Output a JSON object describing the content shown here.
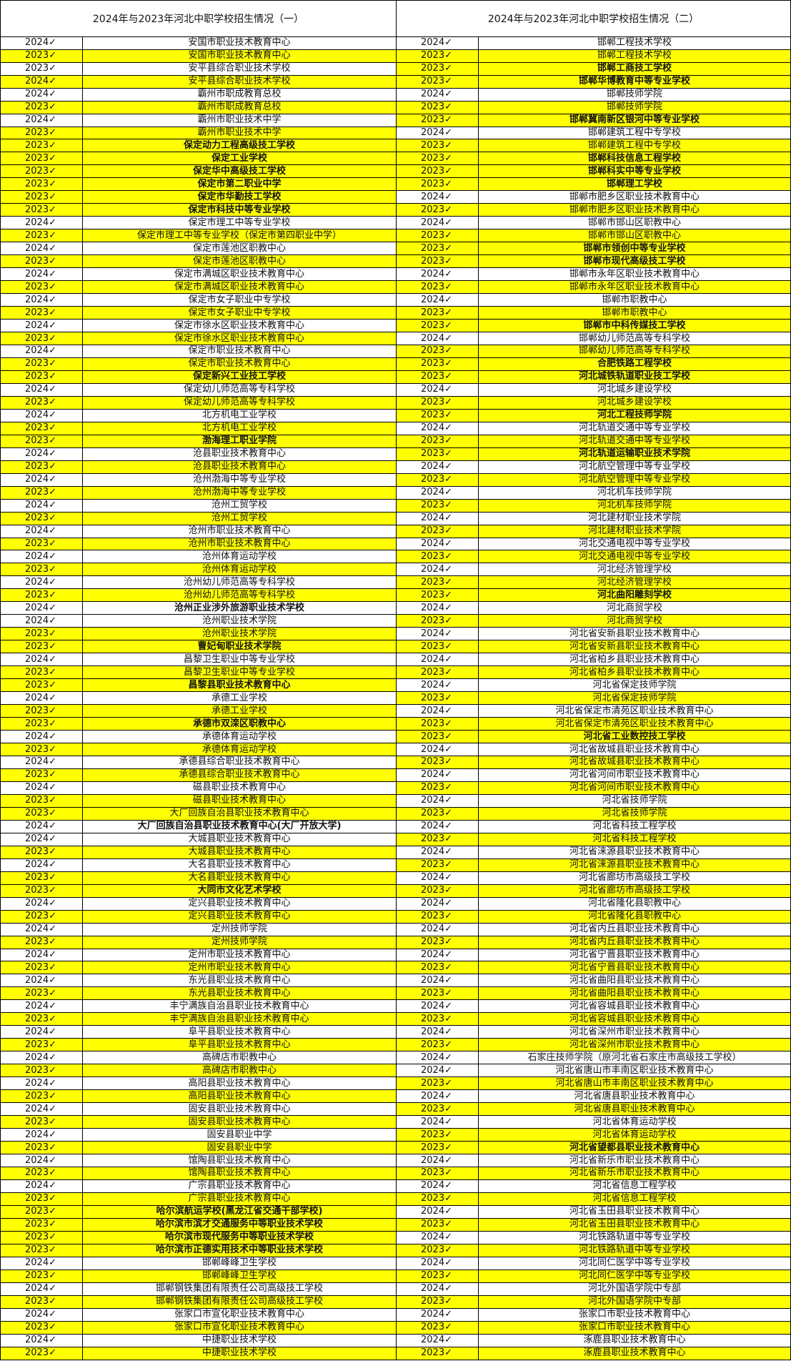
{
  "headers": [
    "2024年与2023年河北中职学校招生情况（一）",
    "2024年与2023年河北中职学校招生情况（二）"
  ],
  "colors": {
    "highlight": "#ffff00",
    "red_text": "#ff0000",
    "border": "#000000"
  },
  "rows": [
    {
      "ly": "2024✓",
      "ln": "安国市职业技术教育中心",
      "lh": 0,
      "lr": 0,
      "ry": "2024✓",
      "rn": "邯郸工程技术学校",
      "rh": 0,
      "rr": 0
    },
    {
      "ly": "2023✓",
      "ln": "安国市职业技术教育中心",
      "lh": 1,
      "lr": 0,
      "ry": "2023✓",
      "rn": "邯郸工程技术学校",
      "rh": 1,
      "rr": 0
    },
    {
      "ly": "2023✓",
      "ln": "安平县综合职业技术学校",
      "lh": 0,
      "lr": 0,
      "ry": "2023✓",
      "rn": "邯郸工商技工学校",
      "rh": 1,
      "rr": 1
    },
    {
      "ly": "2024✓",
      "ln": "安平县综合职业技术学校",
      "lh": 1,
      "lr": 0,
      "ry": "2023✓",
      "rn": "邯郸华博教育中等专业学校",
      "rh": 1,
      "rr": 1
    },
    {
      "ly": "2024✓",
      "ln": "霸州市职成教育总校",
      "lh": 0,
      "lr": 0,
      "ry": "2024✓",
      "rn": "邯郸技师学院",
      "rh": 0,
      "rr": 0
    },
    {
      "ly": "2023✓",
      "ln": "霸州市职成教育总校",
      "lh": 1,
      "lr": 0,
      "ry": "2023✓",
      "rn": "邯郸技师学院",
      "rh": 1,
      "rr": 0
    },
    {
      "ly": "2024✓",
      "ln": "霸州市职业技术中学",
      "lh": 0,
      "lr": 0,
      "ry": "2023✓",
      "rn": "邯郸冀南新区银河中等专业学校",
      "rh": 1,
      "rr": 1
    },
    {
      "ly": "2023✓",
      "ln": "霸州市职业技术中学",
      "lh": 1,
      "lr": 0,
      "ry": "2024✓",
      "rn": "邯郸建筑工程中专学校",
      "rh": 0,
      "rr": 0
    },
    {
      "ly": "2023✓",
      "ln": "保定动力工程高级技工学校",
      "lh": 1,
      "lr": 1,
      "ry": "2023✓",
      "rn": "邯郸建筑工程中专学校",
      "rh": 1,
      "rr": 0
    },
    {
      "ly": "2023✓",
      "ln": "保定工业学校",
      "lh": 1,
      "lr": 1,
      "ry": "2023✓",
      "rn": "邯郸科技信息工程学校",
      "rh": 1,
      "rr": 1
    },
    {
      "ly": "2023✓",
      "ln": "保定华中高级技工学校",
      "lh": 1,
      "lr": 1,
      "ry": "2023✓",
      "rn": "邯郸科实中等专业学校",
      "rh": 1,
      "rr": 1
    },
    {
      "ly": "2023✓",
      "ln": "保定市第二职业中学",
      "lh": 1,
      "lr": 1,
      "ry": "2023✓",
      "rn": "邯郸理工学校",
      "rh": 1,
      "rr": 1
    },
    {
      "ly": "2023✓",
      "ln": "保定市华勤技工学校",
      "lh": 1,
      "lr": 1,
      "ry": "2024✓",
      "rn": "邯郸市肥乡区职业技术教育中心",
      "rh": 0,
      "rr": 0
    },
    {
      "ly": "2023✓",
      "ln": "保定市科技中等专业学校",
      "lh": 1,
      "lr": 1,
      "ry": "2023✓",
      "rn": "邯郸市肥乡区职业技术教育中心",
      "rh": 1,
      "rr": 0
    },
    {
      "ly": "2024✓",
      "ln": "保定市理工中等专业学校",
      "lh": 0,
      "lr": 0,
      "ry": "2024✓",
      "rn": "邯郸市邯山区职教中心",
      "rh": 0,
      "rr": 0
    },
    {
      "ly": "2023✓",
      "ln": "保定市理工中等专业学校（保定市第四职业中学）",
      "lh": 1,
      "lr": 0,
      "ry": "2023✓",
      "rn": "邯郸市邯山区职教中心",
      "rh": 1,
      "rr": 0
    },
    {
      "ly": "2024✓",
      "ln": "保定市莲池区职教中心",
      "lh": 0,
      "lr": 0,
      "ry": "2023✓",
      "rn": "邯郸市领创中等专业学校",
      "rh": 1,
      "rr": 1
    },
    {
      "ly": "2023✓",
      "ln": "保定市莲池区职教中心",
      "lh": 1,
      "lr": 0,
      "ry": "2023✓",
      "rn": "邯郸市现代高级技工学校",
      "rh": 1,
      "rr": 1
    },
    {
      "ly": "2024✓",
      "ln": "保定市满城区职业技术教育中心",
      "lh": 0,
      "lr": 0,
      "ry": "2024✓",
      "rn": "邯郸市永年区职业技术教育中心",
      "rh": 0,
      "rr": 0
    },
    {
      "ly": "2023✓",
      "ln": "保定市满城区职业技术教育中心",
      "lh": 1,
      "lr": 0,
      "ry": "2023✓",
      "rn": "邯郸市永年区职业技术教育中心",
      "rh": 1,
      "rr": 0
    },
    {
      "ly": "2024✓",
      "ln": "保定市女子职业中专学校",
      "lh": 0,
      "lr": 0,
      "ry": "2024✓",
      "rn": "邯郸市职教中心",
      "rh": 0,
      "rr": 0
    },
    {
      "ly": "2023✓",
      "ln": "保定市女子职业中专学校",
      "lh": 1,
      "lr": 0,
      "ry": "2023✓",
      "rn": "邯郸市职教中心",
      "rh": 1,
      "rr": 0
    },
    {
      "ly": "2024✓",
      "ln": "保定市徐水区职业技术教育中心",
      "lh": 0,
      "lr": 0,
      "ry": "2023✓",
      "rn": "邯郸市中科传媒技工学校",
      "rh": 1,
      "rr": 1
    },
    {
      "ly": "2023✓",
      "ln": "保定市徐水区职业技术教育中心",
      "lh": 1,
      "lr": 0,
      "ry": "2024✓",
      "rn": "邯郸幼儿师范高等专科学校",
      "rh": 0,
      "rr": 0
    },
    {
      "ly": "2024✓",
      "ln": "保定市职业技术教育中心",
      "lh": 0,
      "lr": 0,
      "ry": "2023✓",
      "rn": "邯郸幼儿师范高等专科学校",
      "rh": 1,
      "rr": 0
    },
    {
      "ly": "2023✓",
      "ln": "保定市职业技术教育中心",
      "lh": 1,
      "lr": 0,
      "ry": "2023✓",
      "rn": "合肥铁路工程学校",
      "rh": 1,
      "rr": 1
    },
    {
      "ly": "2023✓",
      "ln": "保定新兴工业技工学校",
      "lh": 1,
      "lr": 1,
      "ry": "2023✓",
      "rn": "河北城铁轨道职业技工学校",
      "rh": 1,
      "rr": 1
    },
    {
      "ly": "2024✓",
      "ln": "保定幼儿师范高等专科学校",
      "lh": 0,
      "lr": 0,
      "ry": "2024✓",
      "rn": "河北城乡建设学校",
      "rh": 0,
      "rr": 0
    },
    {
      "ly": "2023✓",
      "ln": "保定幼儿师范高等专科学校",
      "lh": 1,
      "lr": 0,
      "ry": "2023✓",
      "rn": "河北城乡建设学校",
      "rh": 1,
      "rr": 0
    },
    {
      "ly": "2024✓",
      "ln": "北方机电工业学校",
      "lh": 0,
      "lr": 0,
      "ry": "2023✓",
      "rn": "河北工程技师学院",
      "rh": 1,
      "rr": 1
    },
    {
      "ly": "2023✓",
      "ln": "北方机电工业学校",
      "lh": 1,
      "lr": 0,
      "ry": "2024✓",
      "rn": "河北轨道交通中等专业学校",
      "rh": 0,
      "rr": 0
    },
    {
      "ly": "2023✓",
      "ln": "渤海理工职业学院",
      "lh": 1,
      "lr": 1,
      "ry": "2023✓",
      "rn": "河北轨道交通中等专业学校",
      "rh": 1,
      "rr": 0
    },
    {
      "ly": "2024✓",
      "ln": "沧县职业技术教育中心",
      "lh": 0,
      "lr": 0,
      "ry": "2023✓",
      "rn": "河北轨道运输职业技术学院",
      "rh": 1,
      "rr": 1
    },
    {
      "ly": "2023✓",
      "ln": "沧县职业技术教育中心",
      "lh": 1,
      "lr": 0,
      "ry": "2024✓",
      "rn": "河北航空管理中等专业学校",
      "rh": 0,
      "rr": 0
    },
    {
      "ly": "2024✓",
      "ln": "沧州渤海中等专业学校",
      "lh": 0,
      "lr": 0,
      "ry": "2023✓",
      "rn": "河北航空管理中等专业学校",
      "rh": 1,
      "rr": 0
    },
    {
      "ly": "2023✓",
      "ln": "沧州渤海中等专业学校",
      "lh": 1,
      "lr": 0,
      "ry": "2024✓",
      "rn": "河北机车技师学院",
      "rh": 0,
      "rr": 0
    },
    {
      "ly": "2024✓",
      "ln": "沧州工贸学校",
      "lh": 0,
      "lr": 0,
      "ry": "2023✓",
      "rn": "河北机车技师学院",
      "rh": 1,
      "rr": 0
    },
    {
      "ly": "2023✓",
      "ln": "沧州工贸学校",
      "lh": 1,
      "lr": 0,
      "ry": "2024✓",
      "rn": "河北建材职业技术学院",
      "rh": 0,
      "rr": 0
    },
    {
      "ly": "2024✓",
      "ln": "沧州市职业技术教育中心",
      "lh": 0,
      "lr": 0,
      "ry": "2023✓",
      "rn": "河北建材职业技术学院",
      "rh": 1,
      "rr": 0
    },
    {
      "ly": "2023✓",
      "ln": "沧州市职业技术教育中心",
      "lh": 1,
      "lr": 0,
      "ry": "2024✓",
      "rn": "河北交通电视中等专业学校",
      "rh": 0,
      "rr": 0
    },
    {
      "ly": "2024✓",
      "ln": "沧州体育运动学校",
      "lh": 0,
      "lr": 0,
      "ry": "2023✓",
      "rn": "河北交通电视中等专业学校",
      "rh": 1,
      "rr": 0
    },
    {
      "ly": "2023✓",
      "ln": "沧州体育运动学校",
      "lh": 1,
      "lr": 0,
      "ry": "2024✓",
      "rn": "河北经济管理学校",
      "rh": 0,
      "rr": 0
    },
    {
      "ly": "2024✓",
      "ln": "沧州幼儿师范高等专科学校",
      "lh": 0,
      "lr": 0,
      "ry": "2023✓",
      "rn": "河北经济管理学校",
      "rh": 1,
      "rr": 0
    },
    {
      "ly": "2023✓",
      "ln": "沧州幼儿师范高等专科学校",
      "lh": 1,
      "lr": 0,
      "ry": "2023✓",
      "rn": "河北曲阳雕刻学校",
      "rh": 1,
      "rr": 1
    },
    {
      "ly": "2024✓",
      "ln": "沧州正业涉外旅游职业技术学校",
      "lh": 0,
      "lr": 1,
      "ry": "2024✓",
      "rn": "河北商贸学校",
      "rh": 0,
      "rr": 0
    },
    {
      "ly": "2024✓",
      "ln": "沧州职业技术学院",
      "lh": 0,
      "lr": 0,
      "ry": "2023✓",
      "rn": "河北商贸学校",
      "rh": 1,
      "rr": 0
    },
    {
      "ly": "2023✓",
      "ln": "沧州职业技术学院",
      "lh": 1,
      "lr": 0,
      "ry": "2024✓",
      "rn": "河北省安新县职业技术教育中心",
      "rh": 0,
      "rr": 0
    },
    {
      "ly": "2023✓",
      "ln": "曹妃甸职业技术学院",
      "lh": 1,
      "lr": 1,
      "ry": "2023✓",
      "rn": "河北省安新县职业技术教育中心",
      "rh": 1,
      "rr": 0
    },
    {
      "ly": "2024✓",
      "ln": "昌黎卫生职业中等专业学校",
      "lh": 0,
      "lr": 0,
      "ry": "2024✓",
      "rn": "河北省柏乡县职业技术教育中心",
      "rh": 0,
      "rr": 0
    },
    {
      "ly": "2023✓",
      "ln": "昌黎卫生职业中等专业学校",
      "lh": 1,
      "lr": 0,
      "ry": "2023✓",
      "rn": "河北省柏乡县职业技术教育中心",
      "rh": 1,
      "rr": 0
    },
    {
      "ly": "2023✓",
      "ln": "昌黎县职业技术教育中心",
      "lh": 1,
      "lr": 1,
      "ry": "2024✓",
      "rn": "河北省保定技师学院",
      "rh": 0,
      "rr": 0
    },
    {
      "ly": "2024✓",
      "ln": "承德工业学校",
      "lh": 0,
      "lr": 0,
      "ry": "2023✓",
      "rn": "河北省保定技师学院",
      "rh": 1,
      "rr": 0
    },
    {
      "ly": "2023✓",
      "ln": "承德工业学校",
      "lh": 1,
      "lr": 0,
      "ry": "2024✓",
      "rn": "河北省保定市清苑区职业技术教育中心",
      "rh": 0,
      "rr": 0
    },
    {
      "ly": "2023✓",
      "ln": "承德市双滦区职教中心",
      "lh": 1,
      "lr": 1,
      "ry": "2023✓",
      "rn": "河北省保定市清苑区职业技术教育中心",
      "rh": 1,
      "rr": 0
    },
    {
      "ly": "2024✓",
      "ln": "承德体育运动学校",
      "lh": 0,
      "lr": 0,
      "ry": "2023✓",
      "rn": "河北省工业数控技工学校",
      "rh": 1,
      "rr": 1
    },
    {
      "ly": "2023✓",
      "ln": "承德体育运动学校",
      "lh": 1,
      "lr": 0,
      "ry": "2024✓",
      "rn": "河北省故城县职业技术教育中心",
      "rh": 0,
      "rr": 0
    },
    {
      "ly": "2024✓",
      "ln": "承德县综合职业技术教育中心",
      "lh": 0,
      "lr": 0,
      "ry": "2023✓",
      "rn": "河北省故城县职业技术教育中心",
      "rh": 1,
      "rr": 0
    },
    {
      "ly": "2023✓",
      "ln": "承德县综合职业技术教育中心",
      "lh": 1,
      "lr": 0,
      "ry": "2024✓",
      "rn": "河北省河间市职业技术教育中心",
      "rh": 0,
      "rr": 0
    },
    {
      "ly": "2024✓",
      "ln": "磁县职业技术教育中心",
      "lh": 0,
      "lr": 0,
      "ry": "2023✓",
      "rn": "河北省河间市职业技术教育中心",
      "rh": 1,
      "rr": 0
    },
    {
      "ly": "2023✓",
      "ln": "磁县职业技术教育中心",
      "lh": 1,
      "lr": 0,
      "ry": "2024✓",
      "rn": "河北省技师学院",
      "rh": 0,
      "rr": 0
    },
    {
      "ly": "2023✓",
      "ln": "大厂回族自治县职业技术教育中心",
      "lh": 1,
      "lr": 0,
      "ry": "2023✓",
      "rn": "河北省技师学院",
      "rh": 1,
      "rr": 0
    },
    {
      "ly": "2024✓",
      "ln": "大厂回族自治县职业技术教育中心(大厂开放大学)",
      "lh": 0,
      "lr": 1,
      "ry": "2024✓",
      "rn": "河北省科技工程学校",
      "rh": 0,
      "rr": 0
    },
    {
      "ly": "2024✓",
      "ln": "大城县职业技术教育中心",
      "lh": 0,
      "lr": 0,
      "ry": "2023✓",
      "rn": "河北省科技工程学校",
      "rh": 1,
      "rr": 0
    },
    {
      "ly": "2023✓",
      "ln": "大城县职业技术教育中心",
      "lh": 1,
      "lr": 0,
      "ry": "2024✓",
      "rn": "河北省涞源县职业技术教育中心",
      "rh": 0,
      "rr": 0
    },
    {
      "ly": "2024✓",
      "ln": "大名县职业技术教育中心",
      "lh": 0,
      "lr": 0,
      "ry": "2023✓",
      "rn": "河北省涞源县职业技术教育中心",
      "rh": 1,
      "rr": 0
    },
    {
      "ly": "2023✓",
      "ln": "大名县职业技术教育中心",
      "lh": 1,
      "lr": 0,
      "ry": "2024✓",
      "rn": "河北省廊坊市高级技工学校",
      "rh": 0,
      "rr": 0
    },
    {
      "ly": "2023✓",
      "ln": "大同市文化艺术学校",
      "lh": 1,
      "lr": 1,
      "ry": "2023✓",
      "rn": "河北省廊坊市高级技工学校",
      "rh": 1,
      "rr": 0
    },
    {
      "ly": "2024✓",
      "ln": "定兴县职业技术教育中心",
      "lh": 0,
      "lr": 0,
      "ry": "2024✓",
      "rn": "河北省隆化县职教中心",
      "rh": 0,
      "rr": 0
    },
    {
      "ly": "2023✓",
      "ln": "定兴县职业技术教育中心",
      "lh": 1,
      "lr": 0,
      "ry": "2023✓",
      "rn": "河北省隆化县职教中心",
      "rh": 1,
      "rr": 0
    },
    {
      "ly": "2024✓",
      "ln": "定州技师学院",
      "lh": 0,
      "lr": 0,
      "ry": "2024✓",
      "rn": "河北省内丘县职业技术教育中心",
      "rh": 0,
      "rr": 0
    },
    {
      "ly": "2023✓",
      "ln": "定州技师学院",
      "lh": 1,
      "lr": 0,
      "ry": "2023✓",
      "rn": "河北省内丘县职业技术教育中心",
      "rh": 1,
      "rr": 0
    },
    {
      "ly": "2024✓",
      "ln": "定州市职业技术教育中心",
      "lh": 0,
      "lr": 0,
      "ry": "2024✓",
      "rn": "河北省宁晋县职业技术教育中心",
      "rh": 0,
      "rr": 0
    },
    {
      "ly": "2023✓",
      "ln": "定州市职业技术教育中心",
      "lh": 1,
      "lr": 0,
      "ry": "2023✓",
      "rn": "河北省宁晋县职业技术教育中心",
      "rh": 1,
      "rr": 0
    },
    {
      "ly": "2024✓",
      "ln": "东光县职业技术教育中心",
      "lh": 0,
      "lr": 0,
      "ry": "2024✓",
      "rn": "河北省曲阳县职业技术教育中心",
      "rh": 0,
      "rr": 0
    },
    {
      "ly": "2023✓",
      "ln": "东光县职业技术教育中心",
      "lh": 1,
      "lr": 0,
      "ry": "2023✓",
      "rn": "河北省曲阳县职业技术教育中心",
      "rh": 1,
      "rr": 0
    },
    {
      "ly": "2024✓",
      "ln": "丰宁满族自治县职业技术教育中心",
      "lh": 0,
      "lr": 0,
      "ry": "2024✓",
      "rn": "河北省容城县职业技术教育中心",
      "rh": 0,
      "rr": 0
    },
    {
      "ly": "2023✓",
      "ln": "丰宁满族自治县职业技术教育中心",
      "lh": 1,
      "lr": 0,
      "ry": "2023✓",
      "rn": "河北省容城县职业技术教育中心",
      "rh": 1,
      "rr": 0
    },
    {
      "ly": "2024✓",
      "ln": "阜平县职业技术教育中心",
      "lh": 0,
      "lr": 0,
      "ry": "2024✓",
      "rn": "河北省深州市职业技术教育中心",
      "rh": 0,
      "rr": 0
    },
    {
      "ly": "2023✓",
      "ln": "阜平县职业技术教育中心",
      "lh": 1,
      "lr": 0,
      "ry": "2023✓",
      "rn": "河北省深州市职业技术教育中心",
      "rh": 1,
      "rr": 0
    },
    {
      "ly": "2024✓",
      "ln": "高碑店市职教中心",
      "lh": 0,
      "lr": 0,
      "ry": "2024✓",
      "rn": "石家庄技师学院（原河北省石家庄市高级技工学校）",
      "rh": 0,
      "rr": 0
    },
    {
      "ly": "2023✓",
      "ln": "高碑店市职教中心",
      "lh": 1,
      "lr": 0,
      "ry": "2024✓",
      "rn": "河北省唐山市丰南区职业技术教育中心",
      "rh": 0,
      "rr": 0
    },
    {
      "ly": "2024✓",
      "ln": "高阳县职业技术教育中心",
      "lh": 0,
      "lr": 0,
      "ry": "2023✓",
      "rn": "河北省唐山市丰南区职业技术教育中心",
      "rh": 1,
      "rr": 0
    },
    {
      "ly": "2023✓",
      "ln": "高阳县职业技术教育中心",
      "lh": 1,
      "lr": 0,
      "ry": "2024✓",
      "rn": "河北省唐县职业技术教育中心",
      "rh": 0,
      "rr": 0
    },
    {
      "ly": "2024✓",
      "ln": "固安县职业技术教育中心",
      "lh": 0,
      "lr": 0,
      "ry": "2023✓",
      "rn": "河北省唐县职业技术教育中心",
      "rh": 1,
      "rr": 0
    },
    {
      "ly": "2023✓",
      "ln": "固安县职业技术教育中心",
      "lh": 1,
      "lr": 0,
      "ry": "2024✓",
      "rn": "河北省体育运动学校",
      "rh": 0,
      "rr": 0
    },
    {
      "ly": "2024✓",
      "ln": "固安县职业中学",
      "lh": 0,
      "lr": 0,
      "ry": "2023✓",
      "rn": "河北省体育运动学校",
      "rh": 1,
      "rr": 0
    },
    {
      "ly": "2023✓",
      "ln": "固安县职业中学",
      "lh": 1,
      "lr": 0,
      "ry": "2023✓",
      "rn": "河北省望都县职业技术教育中心",
      "rh": 1,
      "rr": 1
    },
    {
      "ly": "2024✓",
      "ln": "馆陶县职业技术教育中心",
      "lh": 0,
      "lr": 0,
      "ry": "2024✓",
      "rn": "河北省新乐市职业技术教育中心",
      "rh": 0,
      "rr": 0
    },
    {
      "ly": "2023✓",
      "ln": "馆陶县职业技术教育中心",
      "lh": 1,
      "lr": 0,
      "ry": "2023✓",
      "rn": "河北省新乐市职业技术教育中心",
      "rh": 1,
      "rr": 0
    },
    {
      "ly": "2024✓",
      "ln": "广宗县职业技术教育中心",
      "lh": 0,
      "lr": 0,
      "ry": "2024✓",
      "rn": "河北省信息工程学校",
      "rh": 0,
      "rr": 0
    },
    {
      "ly": "2023✓",
      "ln": "广宗县职业技术教育中心",
      "lh": 1,
      "lr": 0,
      "ry": "2023✓",
      "rn": "河北省信息工程学校",
      "rh": 1,
      "rr": 0
    },
    {
      "ly": "2023✓",
      "ln": "哈尔滨航运学校(黑龙江省交通干部学校)",
      "lh": 1,
      "lr": 1,
      "ry": "2024✓",
      "rn": "河北省玉田县职业技术教育中心",
      "rh": 0,
      "rr": 0
    },
    {
      "ly": "2023✓",
      "ln": "哈尔滨市滨才交通服务中等职业技术学校",
      "lh": 1,
      "lr": 1,
      "ry": "2023✓",
      "rn": "河北省玉田县职业技术教育中心",
      "rh": 1,
      "rr": 0
    },
    {
      "ly": "2023✓",
      "ln": "哈尔滨市现代服务中等职业技术学校",
      "lh": 1,
      "lr": 1,
      "ry": "2024✓",
      "rn": "河北铁路轨道中等专业学校",
      "rh": 0,
      "rr": 0
    },
    {
      "ly": "2023✓",
      "ln": "哈尔滨市正德实用技术中等职业技术学校",
      "lh": 1,
      "lr": 1,
      "ry": "2023✓",
      "rn": "河北铁路轨道中等专业学校",
      "rh": 1,
      "rr": 0
    },
    {
      "ly": "2024✓",
      "ln": "邯郸峰峰卫生学校",
      "lh": 0,
      "lr": 0,
      "ry": "2024✓",
      "rn": "河北同仁医学中等专业学校",
      "rh": 0,
      "rr": 0
    },
    {
      "ly": "2023✓",
      "ln": "邯郸峰峰卫生学校",
      "lh": 1,
      "lr": 0,
      "ry": "2023✓",
      "rn": "河北同仁医学中等专业学校",
      "rh": 1,
      "rr": 0
    },
    {
      "ly": "2024✓",
      "ln": "邯郸钢铁集团有限责任公司高级技工学校",
      "lh": 0,
      "lr": 0,
      "ry": "2024✓",
      "rn": "河北外国语学院中专部",
      "rh": 0,
      "rr": 0
    },
    {
      "ly": "2023✓",
      "ln": "邯郸钢铁集团有限责任公司高级技工学校",
      "lh": 1,
      "lr": 0,
      "ry": "2023✓",
      "rn": "河北外国语学院中专部",
      "rh": 1,
      "rr": 0
    },
    {
      "ly": "2024✓",
      "ln": "张家口市宣化职业技术教育中心",
      "lh": 0,
      "lr": 0,
      "ry": "2024✓",
      "rn": "张家口市职业技术教育中心",
      "rh": 0,
      "rr": 0
    },
    {
      "ly": "2023✓",
      "ln": "张家口市宣化职业技术教育中心",
      "lh": 1,
      "lr": 0,
      "ry": "2023✓",
      "rn": "张家口市职业技术教育中心",
      "rh": 1,
      "rr": 0
    },
    {
      "ly": "2024✓",
      "ln": "中捷职业技术学校",
      "lh": 0,
      "lr": 0,
      "ry": "2024✓",
      "rn": "涿鹿县职业技术教育中心",
      "rh": 0,
      "rr": 0
    },
    {
      "ly": "2023✓",
      "ln": "中捷职业技术学校",
      "lh": 1,
      "lr": 0,
      "ry": "2023✓",
      "rn": "涿鹿县职业技术教育中心",
      "rh": 1,
      "rr": 0
    }
  ]
}
